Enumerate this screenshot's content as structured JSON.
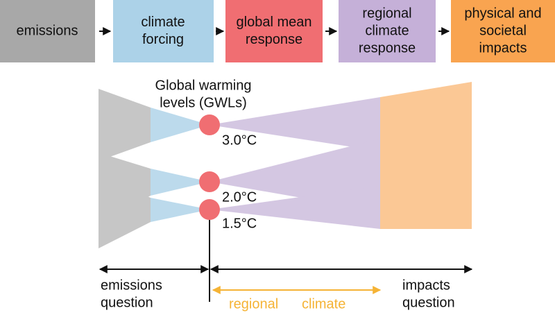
{
  "boxes": [
    {
      "lines": [
        "emissions"
      ]
    },
    {
      "lines": [
        "climate",
        "forcing"
      ]
    },
    {
      "lines": [
        "global mean",
        "response"
      ]
    },
    {
      "lines": [
        "regional",
        "climate",
        "response"
      ]
    },
    {
      "lines": [
        "physical and",
        "societal",
        "impacts"
      ]
    }
  ],
  "gwl_title": [
    "Global warming",
    "levels (GWLs)"
  ],
  "levels": [
    "3.0°C",
    "2.0°C",
    "1.5°C"
  ],
  "emissions_question": [
    "emissions",
    "question"
  ],
  "impacts_question": [
    "impacts",
    "question"
  ],
  "regional_climate": [
    "regional",
    "climate"
  ]
}
